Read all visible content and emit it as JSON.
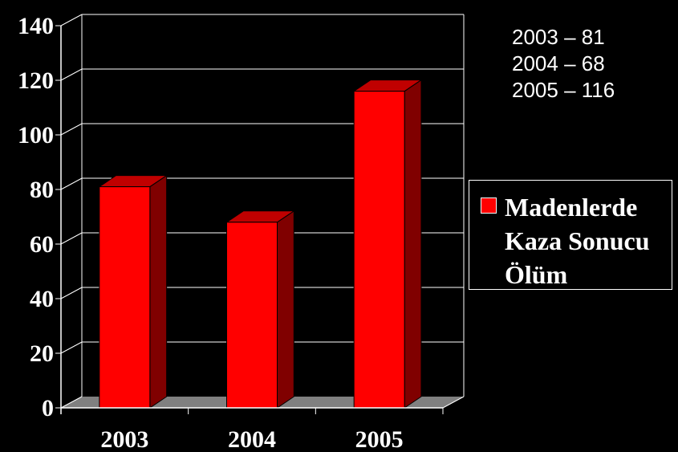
{
  "chart_data": {
    "type": "bar",
    "categories": [
      "2003",
      "2004",
      "2005"
    ],
    "series": [
      {
        "name": "Madenlerde Kaza Sonucu Ölüm",
        "values": [
          81,
          68,
          116
        ]
      }
    ],
    "ylim": [
      0,
      140
    ],
    "yticks": [
      0,
      20,
      40,
      60,
      80,
      100,
      120,
      140
    ],
    "grid": true,
    "legend": "right",
    "style": "3d-column",
    "colors": {
      "background": "#000000",
      "bar_front": "#ff0000",
      "bar_side": "#800000",
      "bar_top": "#c00000",
      "floor": "#808080",
      "grid": "#ffffff"
    }
  },
  "annotations": [
    "2003 – 81",
    "2004 – 68",
    "2005 – 116"
  ],
  "legend": {
    "label": "Madenlerde Kaza Sonucu Ölüm"
  }
}
